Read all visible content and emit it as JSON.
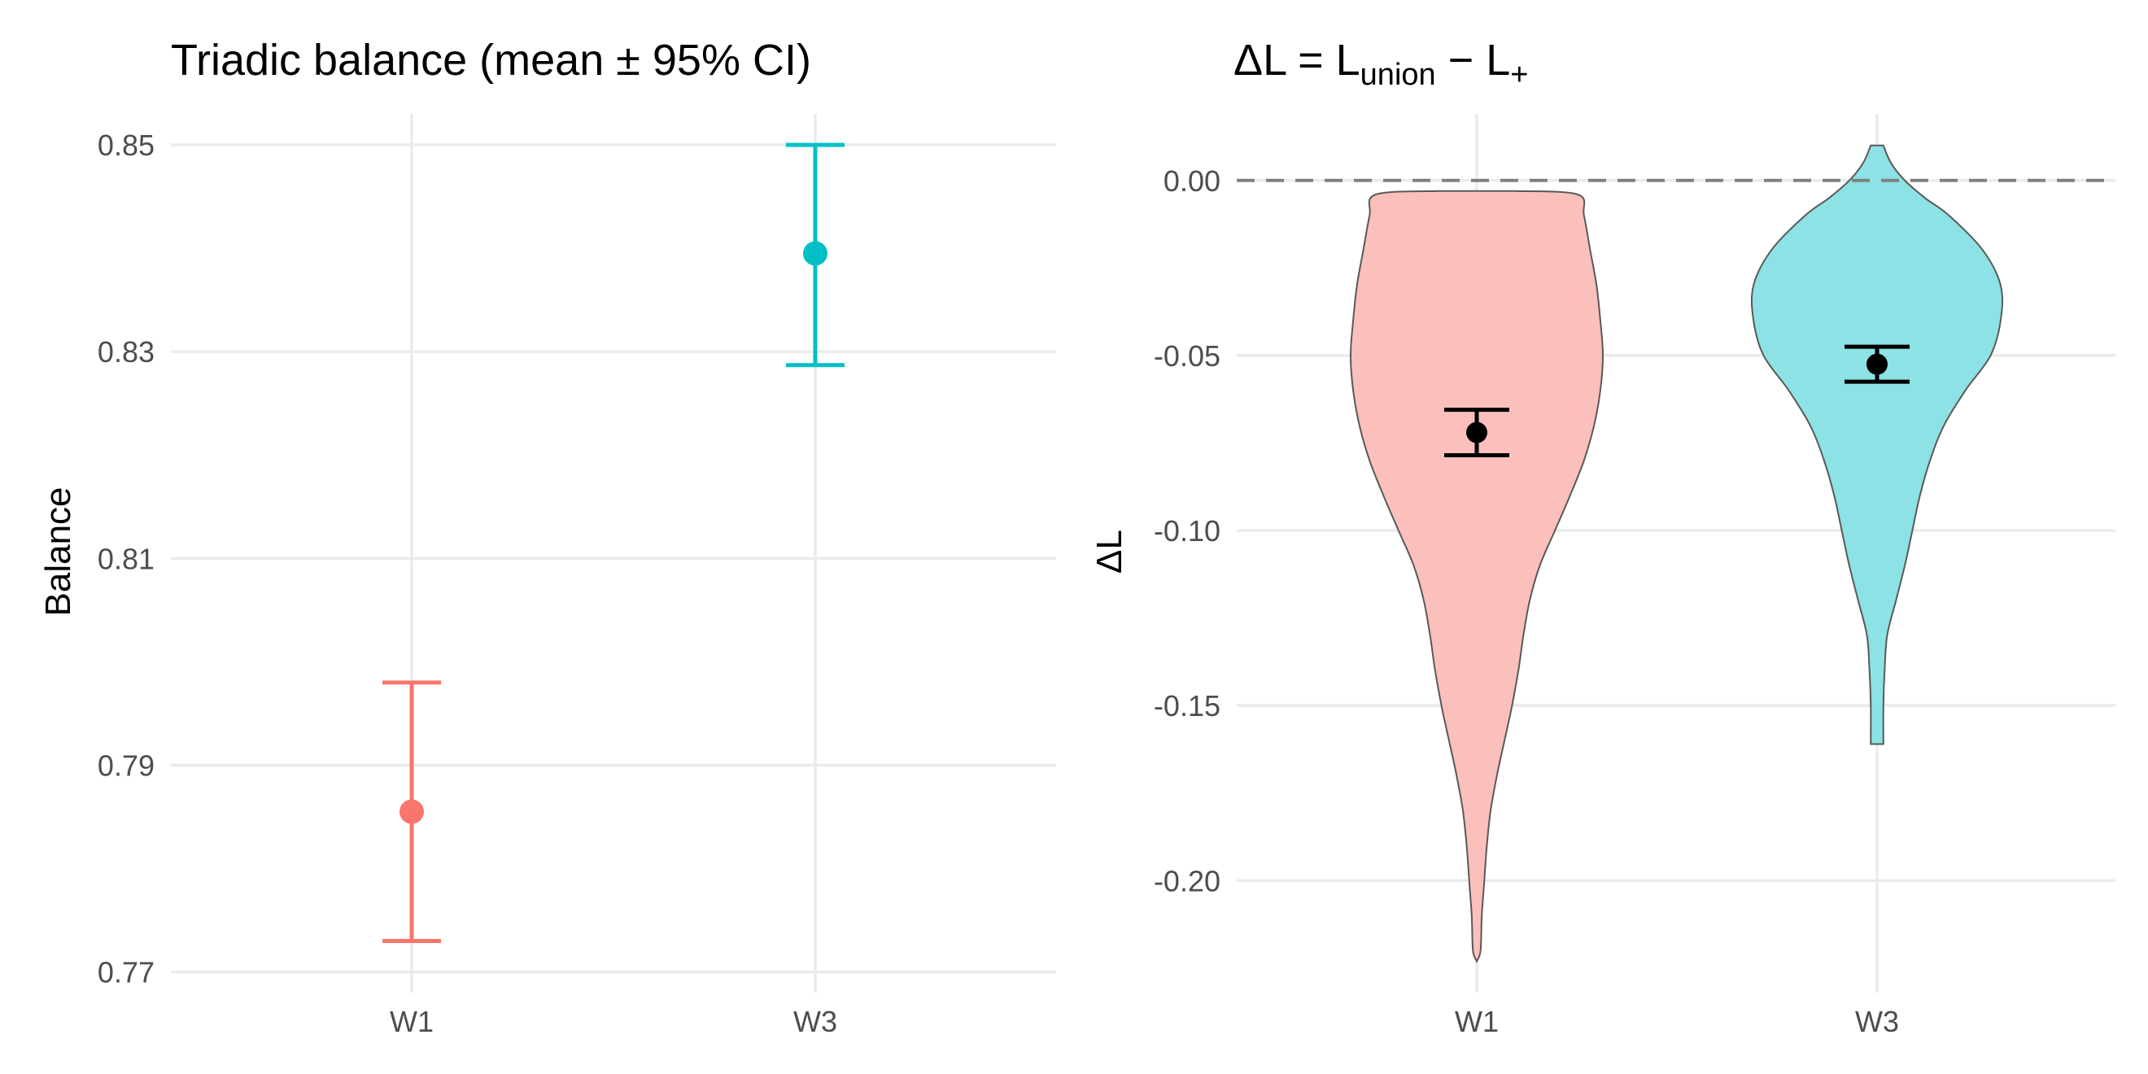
{
  "colors": {
    "W1": "#F8766D",
    "W3": "#00BFC4",
    "W1_fill": "#FBC0BC",
    "W3_fill": "#8CE2E4",
    "violin_outline": "#595959",
    "mean_marker": "#000000",
    "grid": "#EBEBEB",
    "zero_line": "#808080"
  },
  "chart_data": [
    {
      "type": "scatter",
      "variant": "point-with-error-bars",
      "title": "Triadic balance (mean ± 95% CI)",
      "xlabel": "",
      "ylabel": "Balance",
      "categories": [
        "W1",
        "W3"
      ],
      "ylim": [
        0.768,
        0.853
      ],
      "yticks": [
        0.77,
        0.79,
        0.81,
        0.83,
        0.85
      ],
      "ytick_labels": [
        "0.77",
        "0.79",
        "0.81",
        "0.83",
        "0.85"
      ],
      "points": [
        {
          "category": "W1",
          "mean": 0.7855,
          "lower": 0.773,
          "upper": 0.798
        },
        {
          "category": "W3",
          "mean": 0.8395,
          "lower": 0.8287,
          "upper": 0.85
        }
      ],
      "grid": true,
      "legend": "none"
    },
    {
      "type": "violin",
      "title_parts": {
        "main": "ΔL = L",
        "sub1": "union",
        "mid": " − L",
        "sub2": "+"
      },
      "xlabel": "",
      "ylabel": "ΔL",
      "categories": [
        "W1",
        "W3"
      ],
      "ylim": [
        -0.232,
        0.019
      ],
      "yticks": [
        -0.2,
        -0.15,
        -0.1,
        -0.05,
        0.0
      ],
      "ytick_labels": [
        "-0.20",
        "-0.15",
        "-0.10",
        "-0.05",
        "0.00"
      ],
      "reference_line": 0.0,
      "violins": [
        {
          "category": "W1",
          "profile": [
            [
              -0.003,
              0.3
            ],
            [
              -0.004,
              0.8
            ],
            [
              -0.01,
              0.85
            ],
            [
              -0.02,
              0.9
            ],
            [
              -0.03,
              0.95
            ],
            [
              -0.04,
              0.98
            ],
            [
              -0.05,
              1.0
            ],
            [
              -0.06,
              0.98
            ],
            [
              -0.07,
              0.93
            ],
            [
              -0.08,
              0.85
            ],
            [
              -0.09,
              0.74
            ],
            [
              -0.1,
              0.62
            ],
            [
              -0.11,
              0.5
            ],
            [
              -0.12,
              0.42
            ],
            [
              -0.13,
              0.37
            ],
            [
              -0.14,
              0.33
            ],
            [
              -0.15,
              0.28
            ],
            [
              -0.16,
              0.22
            ],
            [
              -0.17,
              0.16
            ],
            [
              -0.18,
              0.11
            ],
            [
              -0.19,
              0.08
            ],
            [
              -0.2,
              0.06
            ],
            [
              -0.21,
              0.04
            ],
            [
              -0.22,
              0.03
            ],
            [
              -0.223,
              0.0
            ]
          ],
          "mean": -0.072,
          "lower": -0.0785,
          "upper": -0.0655
        },
        {
          "category": "W3",
          "profile": [
            [
              0.01,
              0.05
            ],
            [
              0.005,
              0.11
            ],
            [
              0.0,
              0.22
            ],
            [
              -0.005,
              0.38
            ],
            [
              -0.01,
              0.57
            ],
            [
              -0.02,
              0.84
            ],
            [
              -0.03,
              0.98
            ],
            [
              -0.04,
              0.98
            ],
            [
              -0.05,
              0.9
            ],
            [
              -0.06,
              0.7
            ],
            [
              -0.07,
              0.53
            ],
            [
              -0.08,
              0.42
            ],
            [
              -0.09,
              0.34
            ],
            [
              -0.1,
              0.28
            ],
            [
              -0.11,
              0.22
            ],
            [
              -0.12,
              0.15
            ],
            [
              -0.13,
              0.08
            ],
            [
              -0.14,
              0.06
            ],
            [
              -0.15,
              0.05
            ],
            [
              -0.161,
              0.05
            ]
          ],
          "mean": -0.0525,
          "lower": -0.0575,
          "upper": -0.0475
        }
      ],
      "grid": true,
      "legend": "none"
    }
  ]
}
